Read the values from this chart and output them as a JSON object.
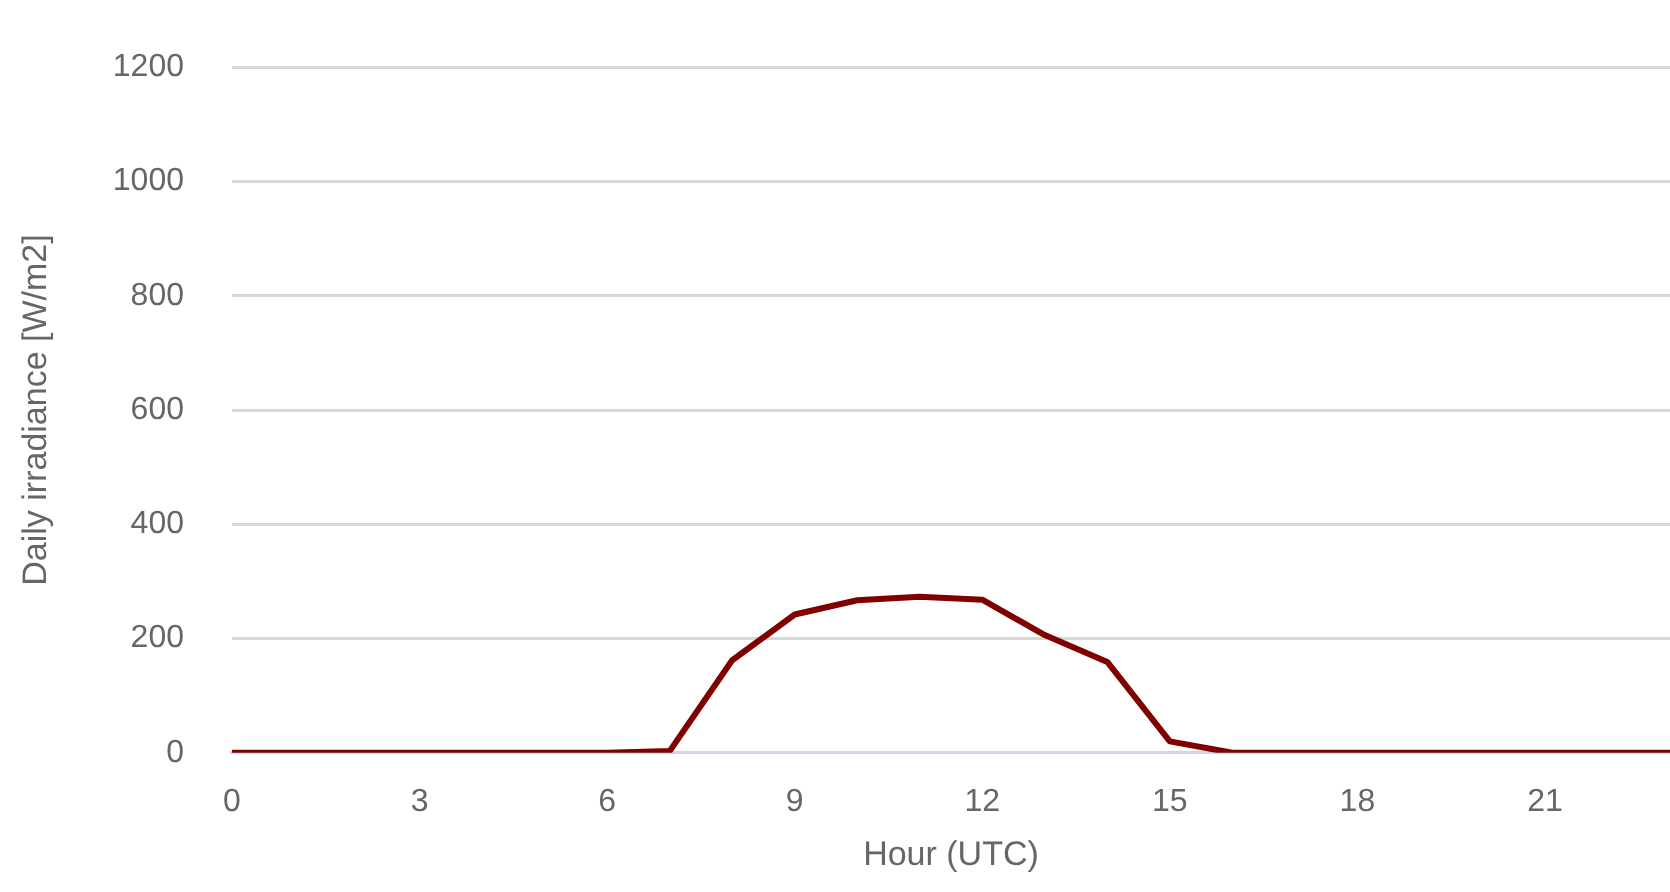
{
  "chart_data": {
    "type": "line",
    "xlabel": "Hour (UTC)",
    "ylabel": "Daily irradiance [W/m2]",
    "x": [
      0,
      1,
      2,
      3,
      4,
      5,
      6,
      7,
      8,
      9,
      10,
      11,
      12,
      13,
      14,
      15,
      16,
      17,
      18,
      19,
      20,
      21,
      22,
      23
    ],
    "series": [
      {
        "color": "#800000",
        "values": [
          0,
          0,
          0,
          0,
          0,
          0,
          0,
          3,
          162,
          242,
          267,
          273,
          268,
          206,
          159,
          20,
          0,
          0,
          0,
          0,
          0,
          0,
          0,
          0
        ]
      }
    ],
    "xlim": [
      0,
      23
    ],
    "xticks": [
      0,
      3,
      6,
      9,
      12,
      15,
      18,
      21
    ],
    "ylim": [
      0,
      1200
    ],
    "yticks": [
      0,
      200,
      400,
      600,
      800,
      1000,
      1200
    ],
    "grid": "y",
    "legend": false,
    "marker": "none",
    "line_style": "solid"
  }
}
